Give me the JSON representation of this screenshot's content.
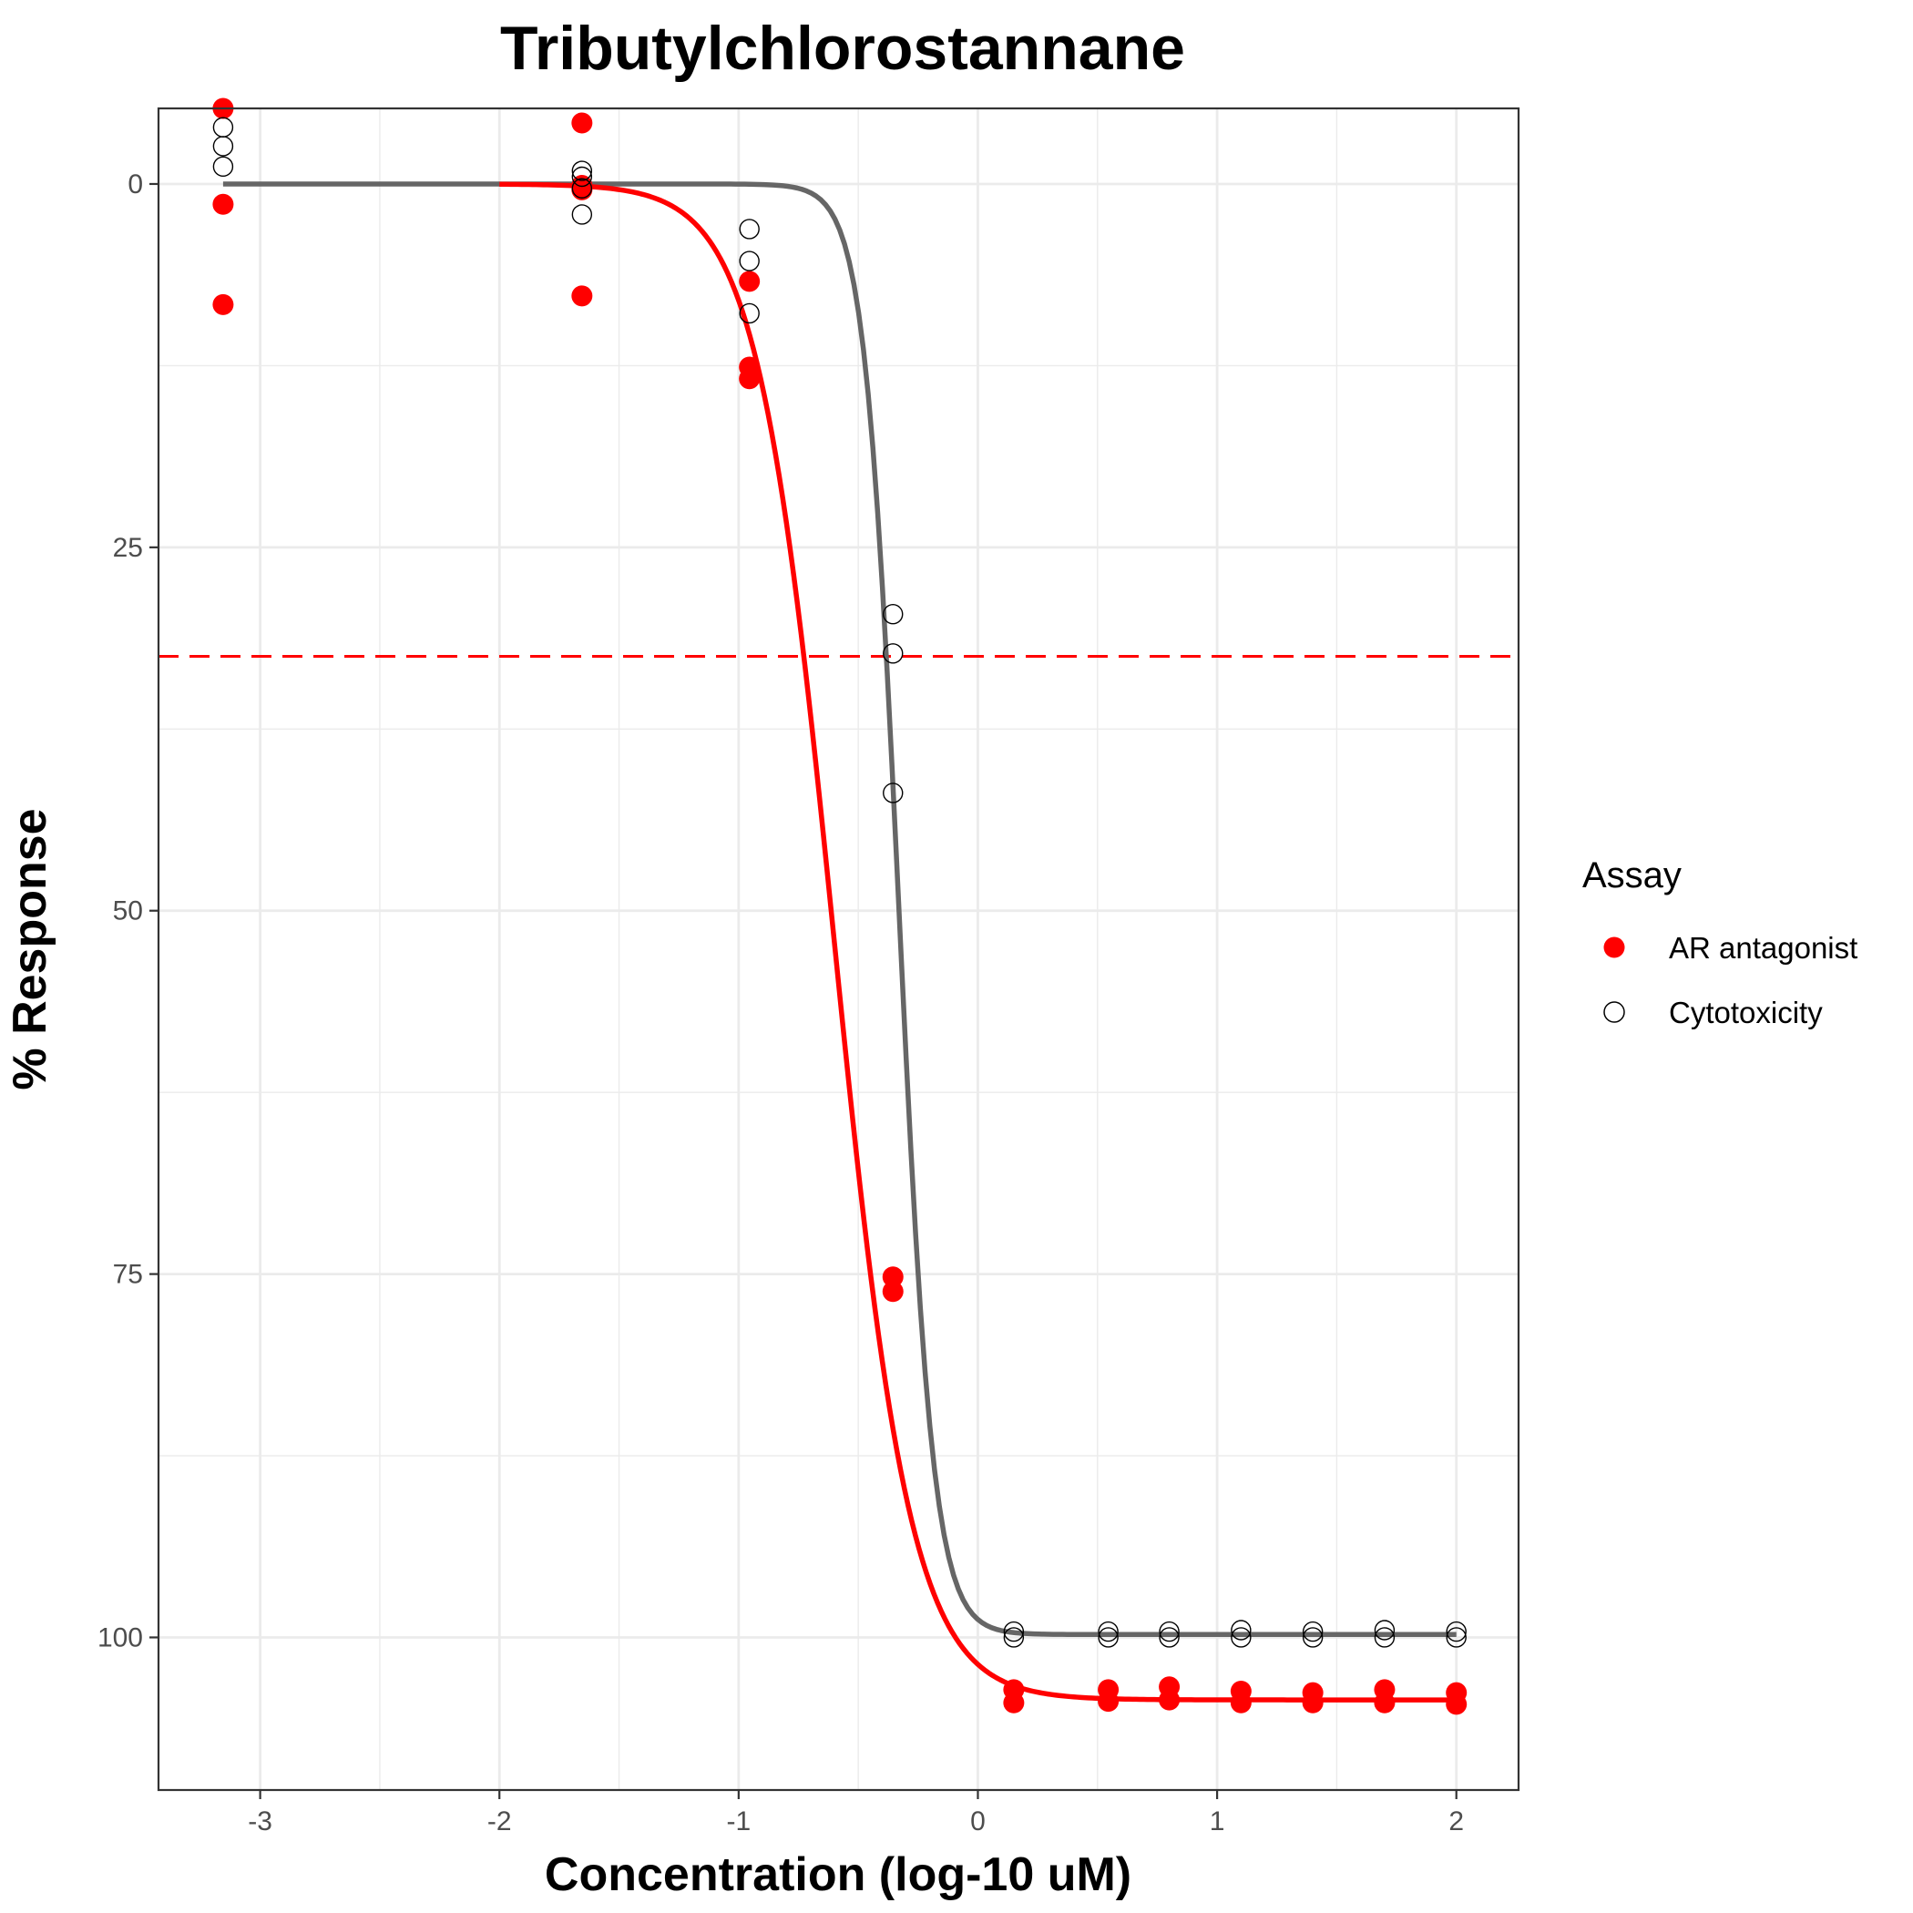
{
  "chart_data": {
    "type": "scatter",
    "title": "Tributylchlorostannane",
    "xlabel": "Concentration (log-10 uM)",
    "ylabel": "% Response",
    "xlim": [
      -3.425,
      2.26
    ],
    "ylim": [
      110.5,
      -5.2
    ],
    "y_reversed": true,
    "x_ticks": [
      -3,
      -2,
      -1,
      0,
      1,
      2
    ],
    "x_tick_labels": [
      "-3",
      "-2",
      "-1",
      "0",
      "1",
      "2"
    ],
    "y_ticks": [
      0,
      25,
      50,
      75,
      100
    ],
    "y_tick_labels": [
      "0",
      "25",
      "50",
      "75",
      "100"
    ],
    "grid": true,
    "reference_line": {
      "y": 32.5,
      "color": "#ff0000",
      "style": "dashed"
    },
    "legend": {
      "title": "Assay",
      "position": "right",
      "entries": [
        {
          "label": "AR antagonist",
          "marker": "filled-circle",
          "color": "#ff0000"
        },
        {
          "label": "Cytotoxicity",
          "marker": "open-circle",
          "color": "#000000"
        }
      ]
    },
    "series": [
      {
        "name": "AR antagonist",
        "color": "#ff0000",
        "marker": "filled",
        "points": [
          {
            "x": -3.155,
            "y": -5.2
          },
          {
            "x": -3.155,
            "y": 1.4
          },
          {
            "x": -3.155,
            "y": 8.3
          },
          {
            "x": -1.655,
            "y": -4.2
          },
          {
            "x": -1.655,
            "y": 0.1
          },
          {
            "x": -1.655,
            "y": 0.4
          },
          {
            "x": -1.655,
            "y": 7.7
          },
          {
            "x": -0.955,
            "y": 6.7
          },
          {
            "x": -0.955,
            "y": 12.6
          },
          {
            "x": -0.955,
            "y": 13.4
          },
          {
            "x": -0.355,
            "y": 75.2
          },
          {
            "x": -0.355,
            "y": 76.2
          },
          {
            "x": 0.15,
            "y": 103.6
          },
          {
            "x": 0.15,
            "y": 104.5
          },
          {
            "x": 0.545,
            "y": 103.6
          },
          {
            "x": 0.545,
            "y": 104.4
          },
          {
            "x": 0.8,
            "y": 103.4
          },
          {
            "x": 0.8,
            "y": 104.3
          },
          {
            "x": 1.1,
            "y": 103.7
          },
          {
            "x": 1.1,
            "y": 104.5
          },
          {
            "x": 1.4,
            "y": 103.8
          },
          {
            "x": 1.4,
            "y": 104.5
          },
          {
            "x": 1.7,
            "y": 103.6
          },
          {
            "x": 1.7,
            "y": 104.5
          },
          {
            "x": 2.0,
            "y": 103.8
          },
          {
            "x": 2.0,
            "y": 104.6
          }
        ],
        "curve": {
          "top": 0,
          "bottom": 104.3,
          "ac50_log": -0.6,
          "hill": 2.7,
          "x_start": -2.0,
          "x_end": 2.0
        }
      },
      {
        "name": "Cytotoxicity",
        "color": "#000000",
        "marker": "open",
        "points": [
          {
            "x": -3.155,
            "y": -3.9
          },
          {
            "x": -3.155,
            "y": -2.6
          },
          {
            "x": -3.155,
            "y": -1.2
          },
          {
            "x": -1.655,
            "y": -0.9
          },
          {
            "x": -1.655,
            "y": -0.5
          },
          {
            "x": -1.655,
            "y": 0.3
          },
          {
            "x": -1.655,
            "y": 2.1
          },
          {
            "x": -0.955,
            "y": 3.1
          },
          {
            "x": -0.955,
            "y": 5.3
          },
          {
            "x": -0.955,
            "y": 8.9
          },
          {
            "x": -0.355,
            "y": 29.6
          },
          {
            "x": -0.355,
            "y": 32.3
          },
          {
            "x": -0.355,
            "y": 41.9
          },
          {
            "x": 0.15,
            "y": 99.6
          },
          {
            "x": 0.15,
            "y": 100.0
          },
          {
            "x": 0.545,
            "y": 99.6
          },
          {
            "x": 0.545,
            "y": 100.0
          },
          {
            "x": 0.8,
            "y": 99.6
          },
          {
            "x": 0.8,
            "y": 100.0
          },
          {
            "x": 1.1,
            "y": 99.5
          },
          {
            "x": 1.1,
            "y": 100.0
          },
          {
            "x": 1.4,
            "y": 99.6
          },
          {
            "x": 1.4,
            "y": 100.0
          },
          {
            "x": 1.7,
            "y": 99.5
          },
          {
            "x": 1.7,
            "y": 100.0
          },
          {
            "x": 2.0,
            "y": 99.6
          },
          {
            "x": 2.0,
            "y": 100.0
          }
        ],
        "curve": {
          "top": 0,
          "bottom": 99.8,
          "ac50_log": -0.33,
          "hill": 6.0,
          "x_start": -3.155,
          "x_end": 2.0
        }
      }
    ]
  }
}
